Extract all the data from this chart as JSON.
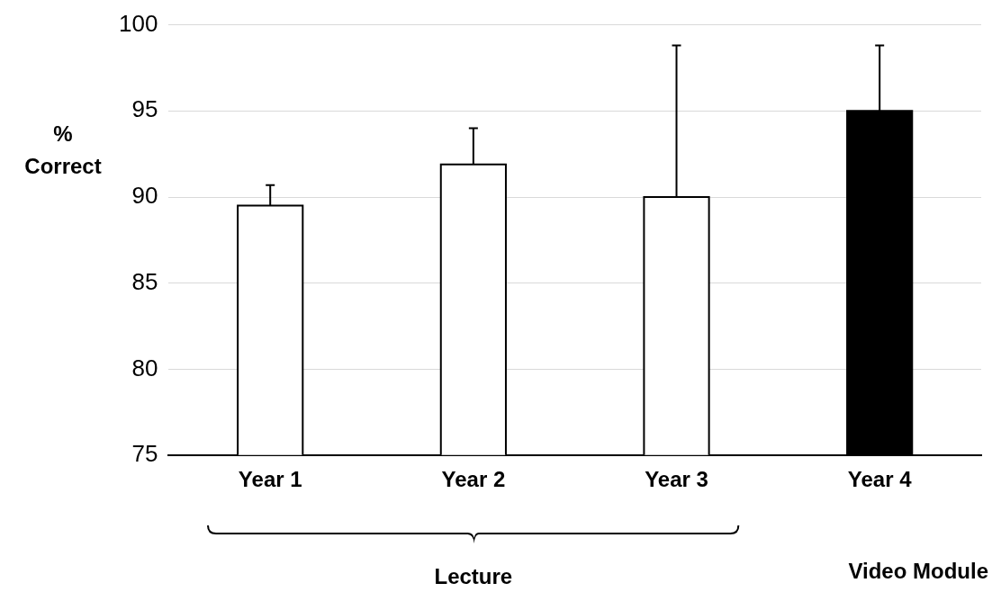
{
  "chart_data": {
    "type": "bar",
    "ylabel": "% Correct",
    "categories": [
      "Year 1",
      "Year 2",
      "Year 3",
      "Year 4"
    ],
    "values": [
      89.5,
      91.9,
      90.0,
      95.0
    ],
    "colors": [
      "#ffffff",
      "#ffffff",
      "#ffffff",
      "#000000"
    ],
    "errors": [
      [
        89.5,
        90.7
      ],
      [
        91.9,
        94.0
      ],
      [
        90.0,
        98.8
      ],
      [
        95.0,
        98.8
      ]
    ],
    "ylim": [
      75,
      100
    ],
    "yticks": [
      75,
      80,
      85,
      90,
      95,
      100
    ],
    "grid": "y",
    "legend": false,
    "annotations": [
      "Lecture",
      "Video Module"
    ]
  }
}
